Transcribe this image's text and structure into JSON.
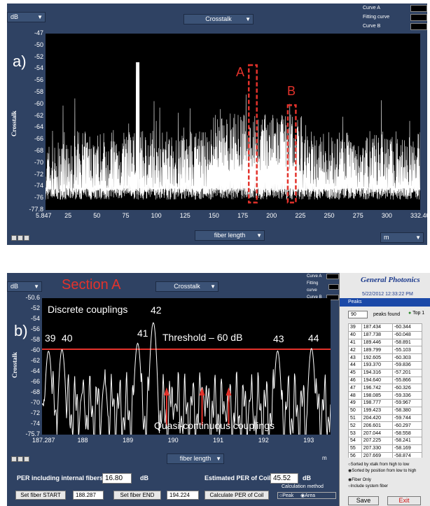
{
  "top": {
    "unit_dropdown": "dB",
    "measure_dropdown": "Crosstalk",
    "legend": [
      "Curve A",
      "Fitting curve",
      "Curve B"
    ],
    "panel_label": "a)",
    "ylabel": "Crosstalk",
    "xlabel_dropdown": "fiber length",
    "xunit_dropdown": "m",
    "box_a": "A",
    "box_b": "B",
    "yticks": [
      "-47",
      "-50",
      "-52",
      "-54",
      "-56",
      "-58",
      "-60",
      "-62",
      "-64",
      "-66",
      "-68",
      "-70",
      "-72",
      "-74",
      "-76",
      "-77.8"
    ],
    "xticks": [
      "5.847",
      "25",
      "50",
      "75",
      "100",
      "125",
      "150",
      "175",
      "200",
      "225",
      "250",
      "275",
      "300",
      "332.402"
    ]
  },
  "bottom": {
    "unit_dropdown": "dB",
    "section_title": "Section A",
    "measure_dropdown": "Crosstalk",
    "legend": [
      "Curve A",
      "Fitting curve",
      "Curve B"
    ],
    "panel_label": "b)",
    "ylabel": "Crosstalk",
    "yticks": [
      "-50.6",
      "-52",
      "-54",
      "-56",
      "-58",
      "-60",
      "-62",
      "-64",
      "-66",
      "-68",
      "-70",
      "-72",
      "-74",
      "-75.7"
    ],
    "xticks": [
      "187.287",
      "188",
      "189",
      "190",
      "191",
      "192",
      "193"
    ],
    "discrete_label": "Discrete couplings",
    "threshold_label": "Threshold – 60 dB",
    "quasi_label": "Quasi-continuous couplings",
    "peak_labels": [
      "39",
      "40",
      "41",
      "42",
      "43",
      "44"
    ],
    "xlabel_dropdown": "fiber length",
    "xunit_dropdown": "m"
  },
  "controls": {
    "per_internal_label": "PER including  internal fibers",
    "per_internal_value": "16.80",
    "per_internal_unit": "dB",
    "per_coil_label": "Estimated PER of Coil",
    "per_coil_value": "45.52",
    "per_coil_unit": "dB",
    "set_start": "Set fiber START",
    "start_value": "188.287",
    "set_end": "Set fiber END",
    "end_value": "194.224",
    "calc_button": "Calculate  PER of Coil",
    "calc_method": "Calculation method",
    "opt_peak": "Peak",
    "opt_area": "Area"
  },
  "peaks_window": {
    "brand": "General Photonics",
    "datetime": "5/22/2012 12:33:22 PM",
    "title": "Peaks",
    "count": "90",
    "count_label": "peaks found",
    "top_label": "Top 1",
    "rows": [
      [
        "39",
        "187.434",
        "-60.344"
      ],
      [
        "40",
        "187.738",
        "-60.048"
      ],
      [
        "41",
        "189.446",
        "-58.891"
      ],
      [
        "42",
        "189.799",
        "-55.103"
      ],
      [
        "43",
        "192.605",
        "-60.303"
      ],
      [
        "44",
        "193.370",
        "-59.836"
      ],
      [
        "45",
        "194.316",
        "-57.201"
      ],
      [
        "46",
        "194.640",
        "-55.866"
      ],
      [
        "47",
        "196.742",
        "-60.326"
      ],
      [
        "48",
        "198.085",
        "-59.336"
      ],
      [
        "49",
        "198.777",
        "-59.967"
      ],
      [
        "50",
        "199.423",
        "-58.380"
      ],
      [
        "51",
        "204.420",
        "-59.744"
      ],
      [
        "52",
        "206.601",
        "-60.297"
      ],
      [
        "53",
        "207.044",
        "-58.558"
      ],
      [
        "54",
        "207.225",
        "-58.241"
      ],
      [
        "55",
        "207.330",
        "-58.169"
      ],
      [
        "56",
        "207.669",
        "-58.874"
      ]
    ],
    "sort1": "Sorted by xtalk from high to low",
    "sort2": "Sorted by position from low to high",
    "fiber_only": "Fiber Only",
    "include_system": "Include system fiber",
    "save": "Save",
    "exit": "Exit"
  },
  "chart_data": [
    {
      "type": "line",
      "title": "Crosstalk",
      "xlabel": "fiber length",
      "ylabel": "Crosstalk",
      "xlim": [
        5.847,
        332.402
      ],
      "ylim": [
        -77.8,
        -47
      ],
      "series": [
        {
          "name": "Curve A",
          "x": [
            5.847,
            25,
            50,
            75,
            86,
            100,
            125,
            150,
            175,
            187,
            200,
            225,
            250,
            275,
            300,
            332.402
          ],
          "y": [
            -70,
            -64,
            -62,
            -66,
            -52,
            -62,
            -60,
            -60,
            -58,
            -54,
            -60,
            -60,
            -62,
            -62,
            -62,
            -68
          ]
        }
      ]
    },
    {
      "type": "line",
      "title": "Crosstalk",
      "xlabel": "fiber length",
      "ylabel": "Crosstalk",
      "xlim": [
        187.287,
        193.8
      ],
      "ylim": [
        -75.7,
        -50.6
      ],
      "series": [
        {
          "name": "Curve A",
          "x": [
            187.3,
            187.434,
            187.738,
            188.2,
            188.7,
            189.446,
            189.799,
            190.3,
            190.9,
            191.4,
            192.0,
            192.605,
            193.37
          ],
          "y": [
            -70,
            -60.344,
            -60.048,
            -68,
            -66,
            -58.891,
            -55.103,
            -70,
            -67,
            -71,
            -69,
            -60.303,
            -59.836
          ]
        }
      ]
    }
  ]
}
